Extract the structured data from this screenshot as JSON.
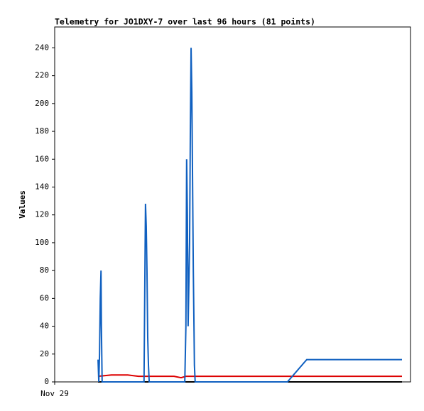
{
  "chart_data": {
    "type": "line",
    "title": "Telemetry for JO1DXY-7 over last 96 hours (81 points)",
    "y_label": "Values",
    "xlim": [
      0,
      96
    ],
    "xticks": [
      {
        "value": 0,
        "label": "Nov 29"
      }
    ],
    "ylim": [
      0,
      255
    ],
    "yticks": [
      0,
      20,
      40,
      60,
      80,
      100,
      120,
      140,
      160,
      180,
      200,
      220,
      240
    ],
    "series": [
      {
        "color": "#000000",
        "x": [
          11.7,
          93.7
        ],
        "values": [
          0,
          0
        ]
      },
      {
        "color": "#dd0000",
        "x": [
          11.7,
          15.3,
          19.7,
          22.6,
          32.2,
          34.1,
          35.4,
          93.7
        ],
        "values": [
          4,
          5,
          5,
          4,
          4,
          3,
          4,
          4
        ]
      },
      {
        "color": "#1060c0",
        "x": [
          11.7,
          11.9,
          12.1,
          12.3,
          12.5,
          12.6,
          12.8,
          24.1,
          24.3,
          24.5,
          24.7,
          24.9,
          25.1,
          25.3,
          25.5,
          35.1,
          35.4,
          35.6,
          35.8,
          36.0,
          36.4,
          36.6,
          36.8,
          37.0,
          37.2,
          37.4,
          37.6,
          37.7,
          37.9,
          62.8,
          68.0,
          93.7
        ],
        "values": [
          16,
          0,
          20,
          60,
          80,
          40,
          0,
          0,
          64,
          128,
          112,
          80,
          32,
          12,
          0,
          0,
          40,
          160,
          120,
          40,
          100,
          180,
          240,
          208,
          144,
          80,
          36,
          12,
          0,
          0,
          16,
          16
        ]
      }
    ]
  }
}
